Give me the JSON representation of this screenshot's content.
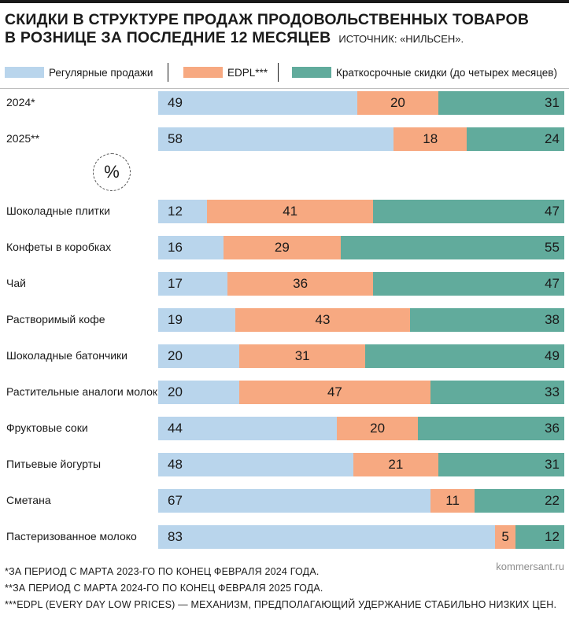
{
  "header": {
    "title_line1": "СКИДКИ В СТРУКТУРЕ ПРОДАЖ ПРОДОВОЛЬСТВЕННЫХ ТОВАРОВ",
    "title_line2": "В РОЗНИЦЕ ЗА ПОСЛЕДНИЕ 12 МЕСЯЦЕВ",
    "source": "ИСТОЧНИК: «НИЛЬСЕН»."
  },
  "unit_symbol": "%",
  "colors": {
    "regular": "#b9d5ec",
    "edpl": "#f7a981",
    "short": "#61ab9c"
  },
  "chart_data": {
    "type": "bar",
    "orientation": "horizontal",
    "stacked": true,
    "normalized": true,
    "categories": [
      "2024*",
      "2025**",
      "Шоколадные плитки",
      "Конфеты в коробках",
      "Чай",
      "Растворимый кофе",
      "Шоколадные батончики",
      "Растительные аналоги молока",
      "Фруктовые соки",
      "Питьевые йогурты",
      "Сметана",
      "Пастеризованное молоко"
    ],
    "series": [
      {
        "name": "Регулярные продажи",
        "values": [
          49,
          58,
          12,
          16,
          17,
          19,
          20,
          20,
          44,
          48,
          67,
          83
        ]
      },
      {
        "name": "EDPL***",
        "values": [
          20,
          18,
          41,
          29,
          36,
          43,
          31,
          47,
          20,
          21,
          11,
          5
        ]
      },
      {
        "name": "Краткосрочные скидки (до четырех месяцев)",
        "values": [
          31,
          24,
          47,
          55,
          47,
          38,
          49,
          33,
          36,
          31,
          22,
          12
        ]
      }
    ],
    "xlim": [
      0,
      100
    ],
    "legend": "top",
    "grid": false
  },
  "footnotes": [
    "*ЗА ПЕРИОД С МАРТА 2023-ГО ПО КОНЕЦ ФЕВРАЛЯ 2024 ГОДА.",
    "**ЗА ПЕРИОД С МАРТА 2024-ГО ПО КОНЕЦ ФЕВРАЛЯ 2025 ГОДА.",
    "***EDPL (EVERY DAY LOW PRICES) — МЕХАНИЗМ, ПРЕДПОЛАГАЮЩИЙ УДЕРЖАНИЕ СТАБИЛЬНО НИЗКИХ ЦЕН."
  ],
  "credit": "kommersant.ru"
}
